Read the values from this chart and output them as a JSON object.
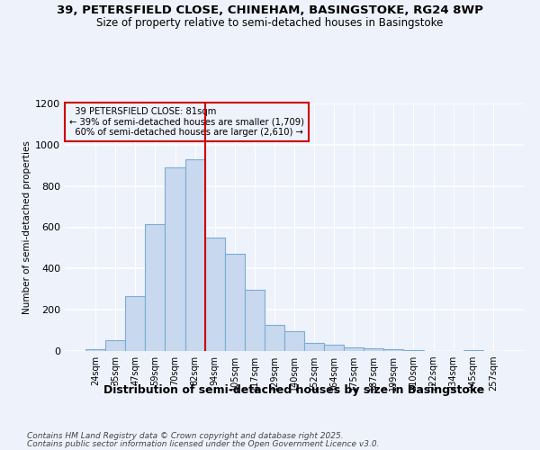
{
  "title_line1": "39, PETERSFIELD CLOSE, CHINEHAM, BASINGSTOKE, RG24 8WP",
  "title_line2": "Size of property relative to semi-detached houses in Basingstoke",
  "xlabel": "Distribution of semi-detached houses by size in Basingstoke",
  "ylabel": "Number of semi-detached properties",
  "categories": [
    "24sqm",
    "35sqm",
    "47sqm",
    "59sqm",
    "70sqm",
    "82sqm",
    "94sqm",
    "105sqm",
    "117sqm",
    "129sqm",
    "140sqm",
    "152sqm",
    "164sqm",
    "175sqm",
    "187sqm",
    "199sqm",
    "210sqm",
    "222sqm",
    "234sqm",
    "245sqm",
    "257sqm"
  ],
  "values": [
    8,
    53,
    265,
    615,
    890,
    930,
    550,
    470,
    295,
    128,
    97,
    40,
    30,
    18,
    12,
    8,
    4,
    2,
    0,
    3,
    1
  ],
  "bar_color": "#c8d8ef",
  "bar_edge_color": "#7aadd4",
  "property_index": 5,
  "property_label": "39 PETERSFIELD CLOSE: 81sqm",
  "pct_smaller": 39,
  "pct_larger": 60,
  "n_smaller": 1709,
  "n_larger": 2610,
  "annotation_box_edgecolor": "#cc0000",
  "vline_color": "#cc0000",
  "ylim": [
    0,
    1200
  ],
  "yticks": [
    0,
    200,
    400,
    600,
    800,
    1000,
    1200
  ],
  "footer_line1": "Contains HM Land Registry data © Crown copyright and database right 2025.",
  "footer_line2": "Contains public sector information licensed under the Open Government Licence v3.0.",
  "bg_color": "#eef2fb"
}
